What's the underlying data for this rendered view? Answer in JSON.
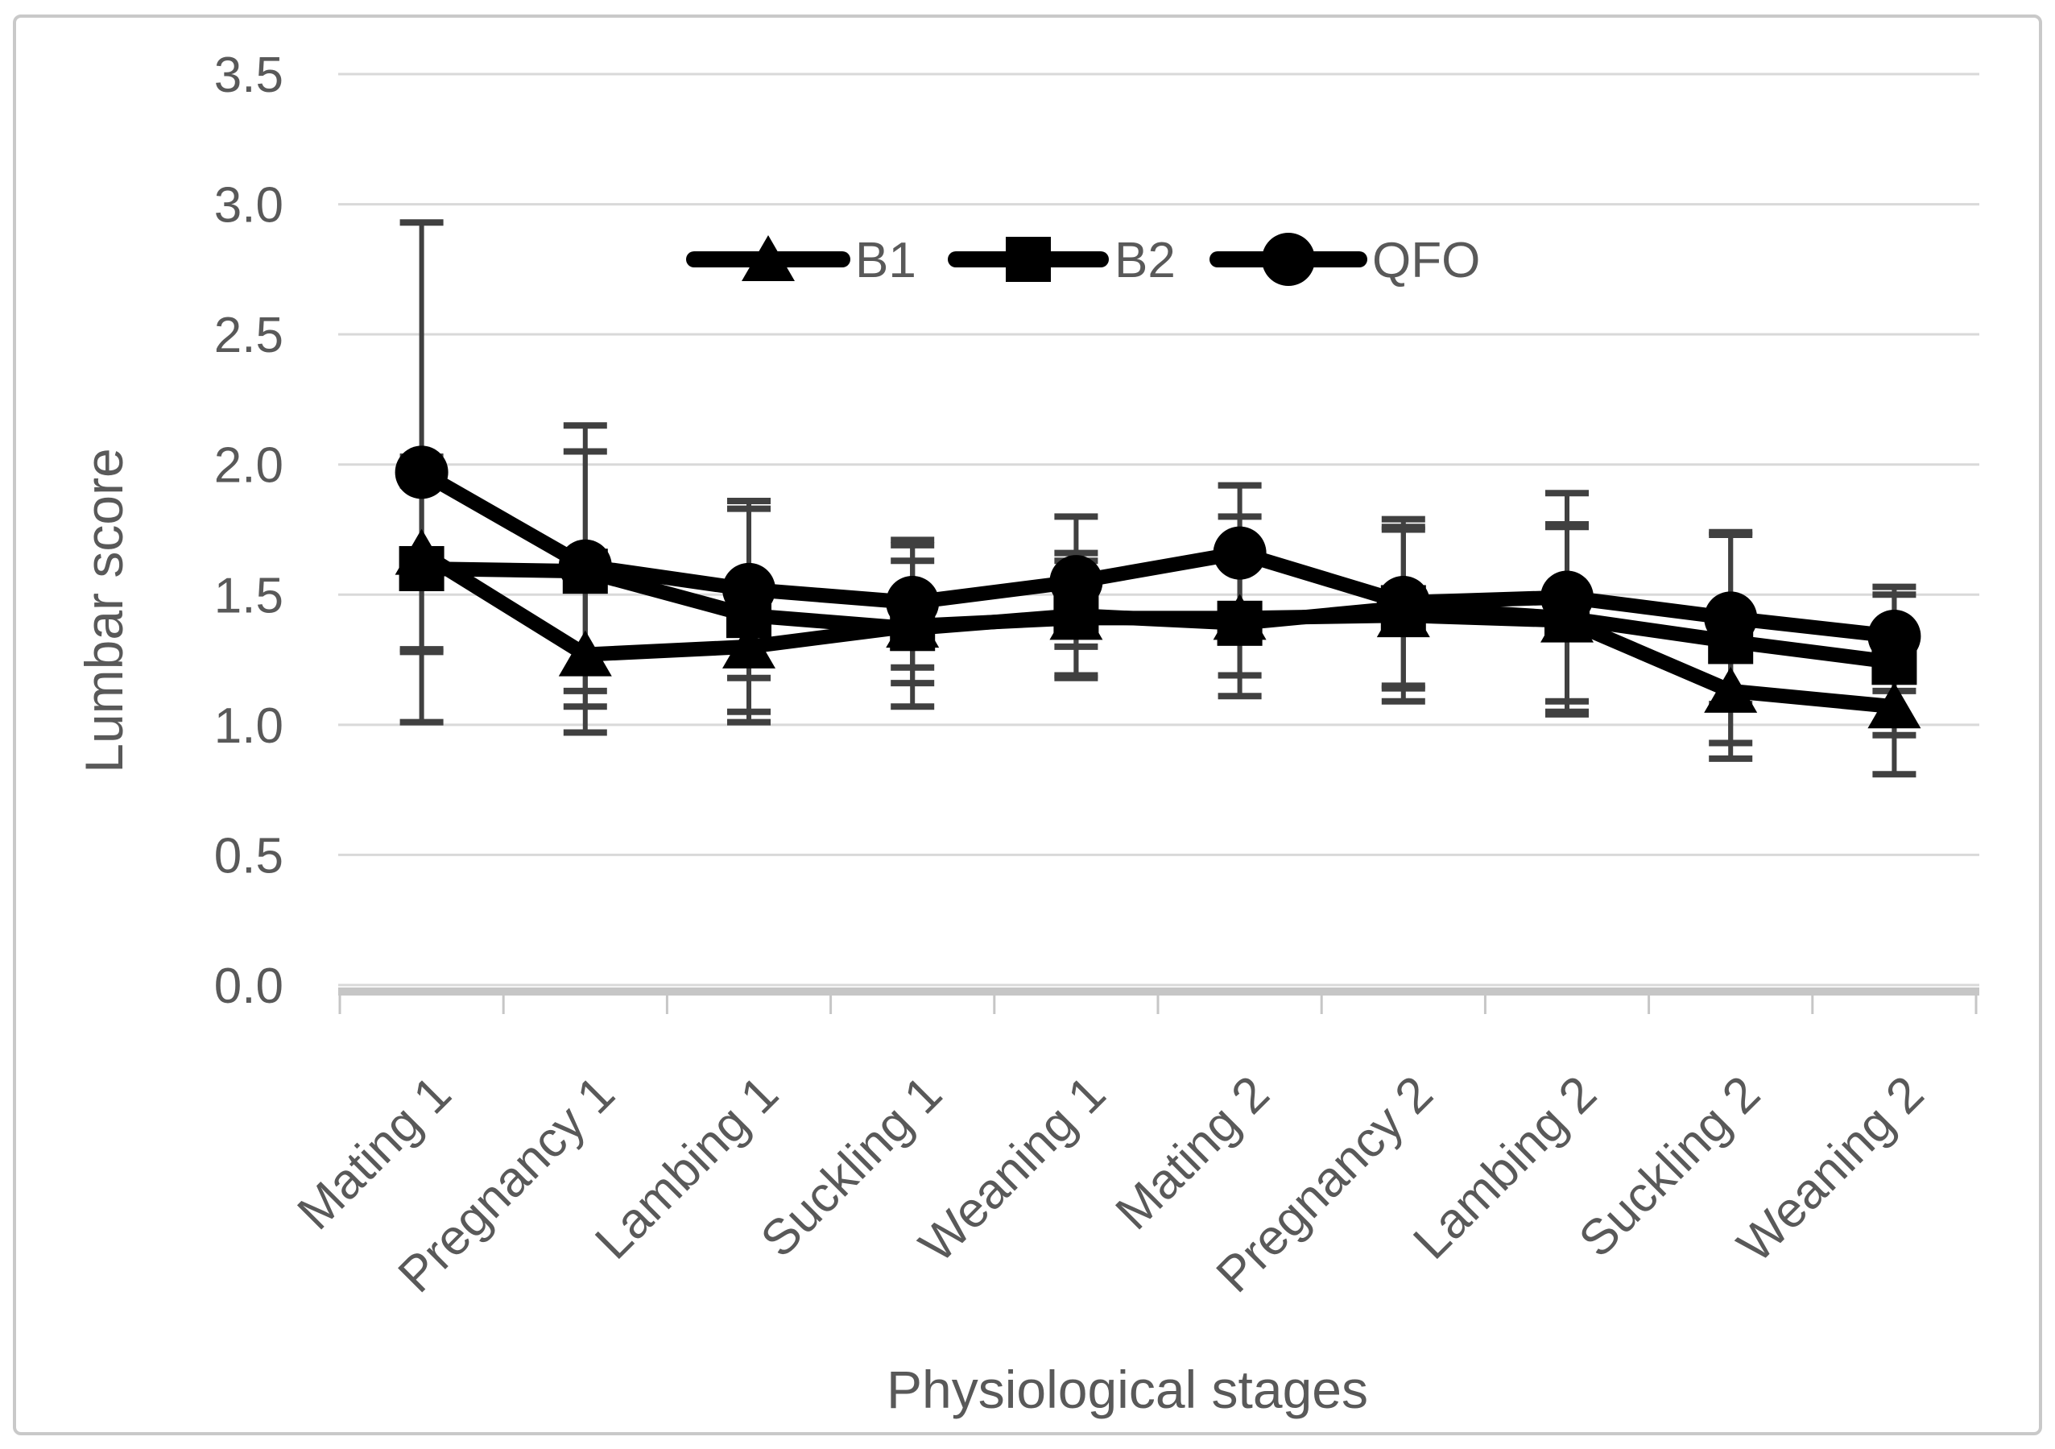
{
  "figure": {
    "background": "#ffffff",
    "border_color": "#c9c9c9"
  },
  "chart_data": {
    "type": "line",
    "title": "",
    "xlabel": "Physiological stages",
    "ylabel": "Lumbar score",
    "categories": [
      "Mating 1",
      "Pregnancy 1",
      "Lambing 1",
      "Suckling 1",
      "Weaning 1",
      "Mating 2",
      "Pregnancy 2",
      "Lambing 2",
      "Suckling 2",
      "Weaning 2"
    ],
    "y_axis": {
      "min": 0.0,
      "max": 3.5,
      "step": 0.5,
      "tick_labels": [
        "0.0",
        "0.5",
        "1.0",
        "1.5",
        "2.0",
        "2.5",
        "3.0",
        "3.5"
      ]
    },
    "grid": true,
    "legend_position": "top-center-inside",
    "series": [
      {
        "name": "B1",
        "marker": "triangle",
        "color": "#000000",
        "values": [
          1.66,
          1.27,
          1.3,
          1.38,
          1.41,
          1.41,
          1.42,
          1.4,
          1.13,
          1.07
        ],
        "err_low": [
          1.29,
          0.97,
          1.05,
          1.07,
          1.19,
          1.19,
          1.09,
          1.04,
          0.87,
          0.81
        ],
        "err_high": [
          2.03,
          1.57,
          1.55,
          1.69,
          1.63,
          1.63,
          1.75,
          1.76,
          1.39,
          1.33
        ]
      },
      {
        "name": "B2",
        "marker": "square",
        "color": "#000000",
        "values": [
          1.6,
          1.59,
          1.42,
          1.37,
          1.42,
          1.39,
          1.45,
          1.41,
          1.32,
          1.24
        ],
        "err_low": [
          1.28,
          1.13,
          1.01,
          1.16,
          1.18,
          1.11,
          1.14,
          1.05,
          0.93,
          0.96
        ],
        "err_high": [
          1.92,
          2.05,
          1.83,
          1.63,
          1.66,
          1.8,
          1.76,
          1.77,
          1.73,
          1.5
        ]
      },
      {
        "name": "QFO",
        "marker": "circle",
        "color": "#000000",
        "values": [
          1.97,
          1.61,
          1.52,
          1.47,
          1.55,
          1.66,
          1.47,
          1.49,
          1.41,
          1.34
        ],
        "err_low": [
          1.01,
          1.07,
          1.18,
          1.22,
          1.3,
          1.4,
          1.15,
          1.09,
          1.08,
          1.13
        ],
        "err_high": [
          2.93,
          2.15,
          1.86,
          1.71,
          1.8,
          1.92,
          1.79,
          1.89,
          1.74,
          1.53
        ]
      }
    ],
    "colors": {
      "series": "#000000",
      "text": "#595959",
      "gridline": "#d9d9d9",
      "axis_line": "#c6c6c6",
      "error_bar": "#404040"
    }
  }
}
